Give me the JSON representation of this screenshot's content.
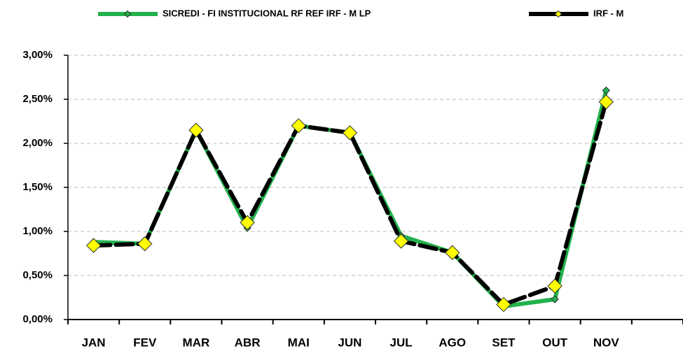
{
  "chart_data": {
    "type": "line",
    "categories": [
      "JAN",
      "FEV",
      "MAR",
      "ABR",
      "MAI",
      "JUN",
      "JUL",
      "AGO",
      "SET",
      "OUT",
      "NOV",
      null
    ],
    "series": [
      {
        "name": "SICREDI - FI INSTITUCIONAL RF REF IRF - M LP",
        "color": "#22b14c",
        "values": [
          0.88,
          0.86,
          2.15,
          1.04,
          2.2,
          2.12,
          0.95,
          0.76,
          0.15,
          0.23,
          2.6,
          null
        ]
      },
      {
        "name": "IRF - M",
        "color": "#000000",
        "values": [
          0.84,
          0.86,
          2.15,
          1.1,
          2.2,
          2.12,
          0.89,
          0.76,
          0.17,
          0.38,
          2.47,
          null
        ]
      }
    ],
    "ylim": [
      0,
      3
    ],
    "yticks": [
      {
        "value": 0,
        "label": "0,00%"
      },
      {
        "value": 0.5,
        "label": "0,50%"
      },
      {
        "value": 1,
        "label": "1,00%"
      },
      {
        "value": 1.5,
        "label": "1,50%"
      },
      {
        "value": 2,
        "label": "2,00%"
      },
      {
        "value": 2.5,
        "label": "2,50%"
      },
      {
        "value": 3,
        "label": "3,00%"
      }
    ],
    "grid": true,
    "legend": "top"
  }
}
